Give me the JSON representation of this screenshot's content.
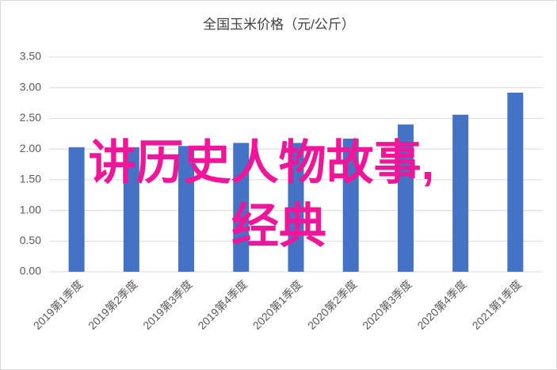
{
  "chart_data": {
    "type": "bar",
    "title": "全国玉米价格（元/公斤）",
    "categories": [
      "2019第1季度",
      "2019第2季度",
      "2019第3季度",
      "2019第4季度",
      "2020第1季度",
      "2020第2季度",
      "2020第3季度",
      "2020第4季度",
      "2021第1季度"
    ],
    "values": [
      2.03,
      2.03,
      2.05,
      2.1,
      2.1,
      2.17,
      2.4,
      2.56,
      2.92
    ],
    "color": "#4472c4",
    "ylim": [
      0,
      3.5
    ],
    "yticks": [
      {
        "value": 0,
        "label": "0.00"
      },
      {
        "value": 0.5,
        "label": "0.50"
      },
      {
        "value": 1,
        "label": "1.00"
      },
      {
        "value": 1.5,
        "label": "1.50"
      },
      {
        "value": 2,
        "label": "2.00"
      },
      {
        "value": 2.5,
        "label": "2.50"
      },
      {
        "value": 3,
        "label": "3.00"
      },
      {
        "value": 3.5,
        "label": "3.50"
      }
    ],
    "grid": true,
    "annotations": [
      "讲历史人物故事,",
      "经典"
    ]
  }
}
